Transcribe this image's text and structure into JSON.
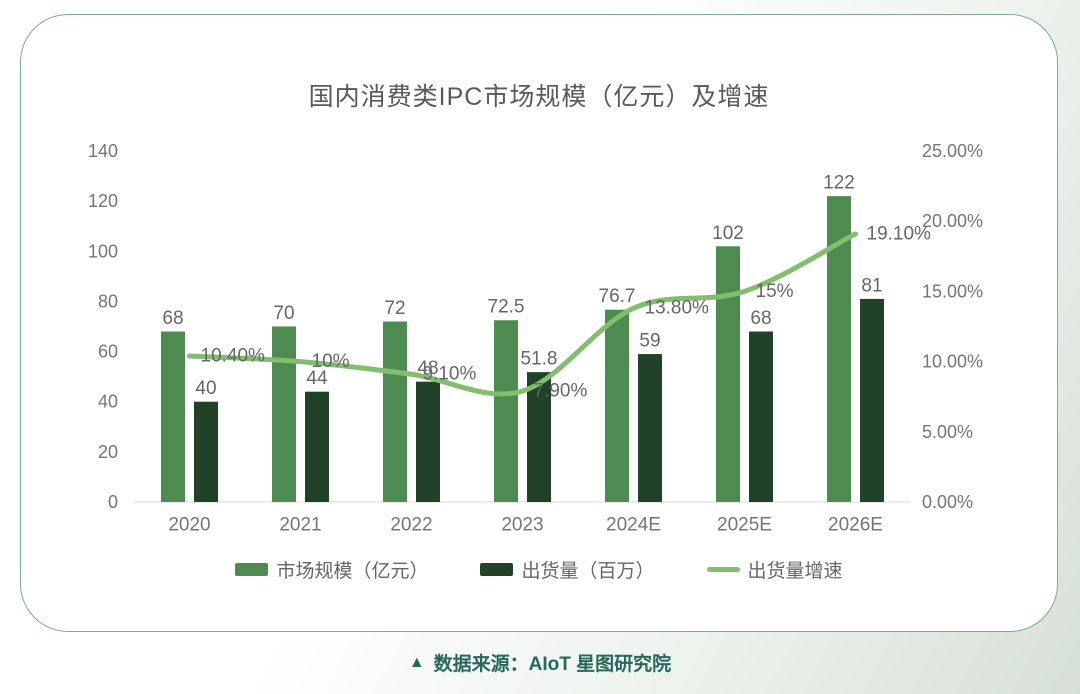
{
  "page": {
    "source_marker": "▲",
    "source_note": "数据来源：AIoT 星图研究院"
  },
  "colors": {
    "market_bar": "#4E8B50",
    "shipment_bar": "#214227",
    "growth_line": "#82BD70",
    "value_label": "#666666",
    "axis_label": "#757575",
    "axis_line": "#d9d9d9",
    "title_text": "#595959",
    "footer_text": "#26685A",
    "card_border": "#7EA89D"
  },
  "chart_data": {
    "type": "bar",
    "subtype": "grouped bars with secondary-axis line",
    "title": "国内消费类IPC市场规模（亿元）及增速",
    "categories": [
      "2020",
      "2021",
      "2022",
      "2023",
      "2024E",
      "2025E",
      "2026E"
    ],
    "series": [
      {
        "name": "市场规模（亿元）",
        "type": "bar",
        "axis": "left",
        "values": [
          68,
          70,
          72,
          72.5,
          76.7,
          102,
          122
        ],
        "labels": [
          "68",
          "70",
          "72",
          "72.5",
          "76.7",
          "102",
          "122"
        ]
      },
      {
        "name": "出货量（百万）",
        "type": "bar",
        "axis": "left",
        "values": [
          40,
          44,
          48,
          51.8,
          59,
          68,
          81
        ],
        "labels": [
          "40",
          "44",
          "48",
          "51.8",
          "59",
          "68",
          "81"
        ]
      },
      {
        "name": "出货量增速",
        "type": "line",
        "axis": "right",
        "values": [
          10.4,
          10,
          9.1,
          7.9,
          13.8,
          15,
          19.1
        ],
        "labels": [
          "10.40%",
          "10%",
          "9.10%",
          "7.90%",
          "13.80%",
          "15%",
          "19.10%"
        ]
      }
    ],
    "left_axis": {
      "min": 0,
      "max": 140,
      "step": 20,
      "ticks": [
        "0",
        "20",
        "40",
        "60",
        "80",
        "100",
        "120",
        "140"
      ]
    },
    "right_axis": {
      "min": 0,
      "max": 25,
      "step": 5,
      "ticks": [
        "0.00%",
        "5.00%",
        "10.00%",
        "15.00%",
        "20.00%",
        "25.00%"
      ]
    },
    "grid": false,
    "legend_position": "bottom"
  }
}
